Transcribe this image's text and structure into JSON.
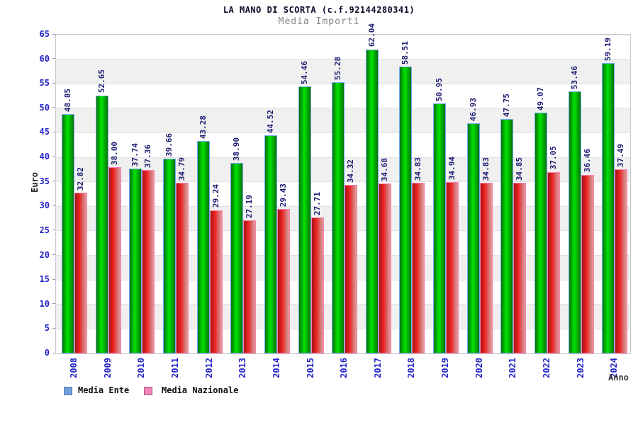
{
  "title": "LA MANO DI SCORTA (c.f.92144280341)",
  "subtitle": "Media Importi",
  "axes": {
    "y_label": "Euro",
    "x_label": "Anno"
  },
  "legend": [
    {
      "label": "Media Ente",
      "swatch_fill": "#6fa0dc",
      "swatch_border": "#4d7fb0"
    },
    {
      "label": "Media Nazionale",
      "swatch_fill": "#ee85b8",
      "swatch_border": "#b05580"
    }
  ],
  "colors": {
    "tick_label": "#2424c8",
    "value_label": "#1b1b72",
    "band_light": "#ffffff",
    "band_dark": "#f0f0f0",
    "title": "#0a0a28",
    "subtitle": "#868686"
  },
  "chart_data": {
    "type": "bar",
    "title": "LA MANO DI SCORTA (c.f.92144280341)",
    "subtitle": "Media Importi",
    "xlabel": "Anno",
    "ylabel": "Euro",
    "ylim": [
      0,
      65
    ],
    "ytick_step": 5,
    "grid": "horizontal-bands",
    "legend_position": "bottom-left",
    "value_label_decimals": 2,
    "categories": [
      "2008",
      "2009",
      "2010",
      "2011",
      "2012",
      "2013",
      "2014",
      "2015",
      "2016",
      "2017",
      "2018",
      "2019",
      "2020",
      "2021",
      "2022",
      "2023",
      "2024"
    ],
    "series": [
      {
        "name": "Media Ente",
        "values": [
          48.85,
          52.65,
          37.74,
          39.66,
          43.28,
          38.9,
          44.52,
          54.46,
          55.28,
          62.04,
          58.51,
          50.95,
          46.93,
          47.75,
          49.07,
          53.46,
          59.19
        ],
        "border_color": "#74aaf0",
        "gradient_stops": [
          "#067206",
          "#00e400 45%",
          "#067206"
        ]
      },
      {
        "name": "Media Nazionale",
        "values": [
          32.82,
          38.0,
          37.36,
          34.79,
          29.24,
          27.19,
          29.43,
          27.71,
          34.32,
          34.68,
          34.83,
          34.94,
          34.83,
          34.85,
          37.05,
          36.46,
          37.49
        ],
        "border_color": "#ff7fae",
        "gradient_stops": [
          "#9c1a1a",
          "#f02020 38%",
          "#d47f7f 80%",
          "#e99a9a"
        ]
      }
    ]
  }
}
